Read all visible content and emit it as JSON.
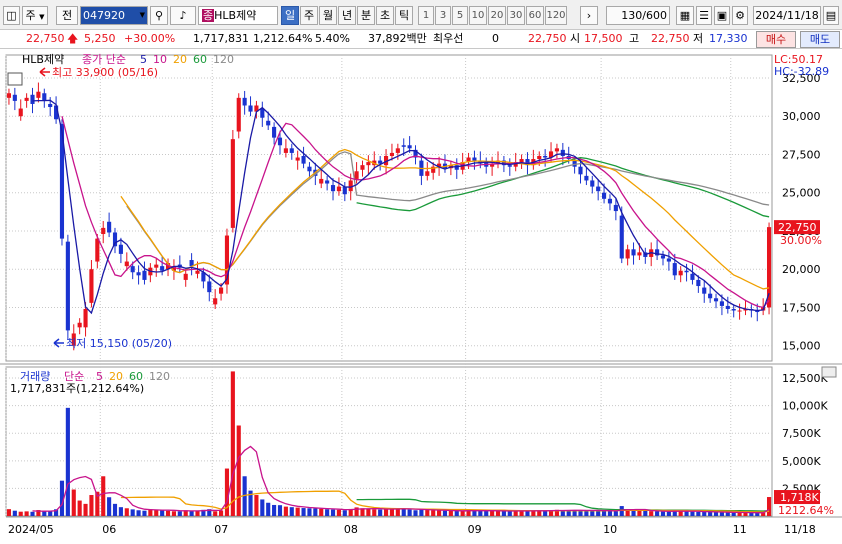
{
  "toolbar": {
    "type_label": "주",
    "prefix_label": "전",
    "code": "047920",
    "stock_name": "HLB제약",
    "stock_badge": "종",
    "period_tabs": [
      "일",
      "주",
      "월",
      "년",
      "분",
      "초",
      "틱"
    ],
    "number_tabs": [
      "1",
      "3",
      "5",
      "10",
      "20",
      "30",
      "60",
      "120"
    ],
    "count": "130",
    "count_total": "/600",
    "date": "2024/11/18"
  },
  "info": {
    "price": "22,750",
    "change": "5,250",
    "change_pct": "+30.00%",
    "volume": "1,717,831",
    "volume_ratio": "1,212.64%",
    "turnover_pct": "5.40%",
    "amount": "37,892백만",
    "priority_label": "최우선",
    "priority_value": "0",
    "current": "22,750",
    "open_label": "시",
    "open": "17,500",
    "high_label": "고",
    "high": "22,750",
    "low_label": "저",
    "low": "17,330",
    "buy_label": "매수",
    "sell_label": "매도"
  },
  "price_panel": {
    "name": "HLB제약",
    "ma_label": "종가 단순",
    "ma_periods": [
      "5",
      "10",
      "20",
      "60",
      "120"
    ],
    "lc": "LC:50.17",
    "hc": "HC:-32.89",
    "high_note": "최고 33,900 (05/16)",
    "low_note": "최저 15,150 (05/20)",
    "last_price_tag": "22,750",
    "last_pct_tag": "30.00%"
  },
  "volume_panel": {
    "title": "거래량",
    "ma_label": "단순",
    "ma_periods": [
      "5",
      "20",
      "60",
      "120"
    ],
    "summary": "1,717,831주(1,212.64%)",
    "last_tag": "1,718K",
    "last_pct_tag": "1212.64%"
  },
  "colors": {
    "up": "#e8141e",
    "down": "#1a33d0",
    "ma5": "#1a1aa6",
    "ma10": "#c8148c",
    "ma20": "#f0a000",
    "ma60": "#1a9a3a",
    "ma120": "#8a8a8a"
  },
  "chart_data": {
    "type": "candlestick",
    "ylim": [
      14000,
      34000
    ],
    "y_ticks": [
      15000,
      17500,
      20000,
      22500,
      25000,
      27500,
      30000,
      32500
    ],
    "volume_ylim": [
      0,
      13500000
    ],
    "volume_ticks": [
      2500000,
      5000000,
      7500000,
      10000000,
      12500000
    ],
    "volume_tick_labels": [
      "2,500K",
      "5,000K",
      "7,500K",
      "10,000K",
      "12,500K"
    ],
    "month_labels": [
      "2024/05",
      "06",
      "07",
      "08",
      "09",
      "10",
      "11",
      "11/18"
    ],
    "month_starts": [
      0,
      16,
      35,
      57,
      78,
      101,
      123
    ],
    "highest": {
      "value": 33900,
      "date": "05/16"
    },
    "lowest": {
      "value": 15150,
      "date": "05/20"
    },
    "close": [
      31500,
      31000,
      30500,
      31200,
      30800,
      31600,
      31000,
      30600,
      29800,
      22000,
      16000,
      15800,
      16500,
      17400,
      20000,
      22000,
      22700,
      22400,
      21500,
      21000,
      20500,
      19800,
      19600,
      19300,
      20100,
      20300,
      19900,
      20400,
      20200,
      20100,
      19700,
      20200,
      19900,
      19200,
      18500,
      18100,
      18800,
      22200,
      28500,
      31200,
      30700,
      30300,
      30700,
      29900,
      29400,
      28600,
      28100,
      27900,
      27600,
      27300,
      26900,
      26400,
      26100,
      25900,
      25600,
      25100,
      25400,
      24900,
      25800,
      26400,
      26800,
      27000,
      27100,
      26900,
      27400,
      27600,
      27900,
      28000,
      27900,
      27300,
      26100,
      26400,
      26700,
      26900,
      26600,
      26800,
      26500,
      27000,
      27300,
      27100,
      26900,
      26700,
      26900,
      27100,
      26800,
      26700,
      27000,
      27200,
      26800,
      27200,
      27400,
      27300,
      27700,
      27900,
      27400,
      27200,
      26700,
      26200,
      25800,
      25400,
      25100,
      24600,
      24300,
      23800,
      20700,
      21300,
      20900,
      21100,
      20800,
      21300,
      20900,
      20700,
      20500,
      19600,
      19900,
      19800,
      19300,
      18900,
      18400,
      18100,
      17900,
      17600,
      17400,
      17300,
      17300,
      17400,
      17300,
      17200,
      17500,
      22750
    ],
    "open_offset": [
      -300,
      400,
      -500,
      -200,
      600,
      -400,
      500,
      200,
      900,
      7500,
      5800,
      -800,
      -300,
      -1200,
      -2200,
      -1500,
      -400,
      700,
      900,
      600,
      -300,
      400,
      200,
      600,
      -500,
      -200,
      300,
      -400,
      -300,
      200,
      -400,
      400,
      -200,
      600,
      700,
      -400,
      -400,
      -3200,
      -5800,
      -2200,
      500,
      400,
      -400,
      600,
      300,
      700,
      500,
      -300,
      300,
      -200,
      500,
      300,
      400,
      -300,
      200,
      400,
      -300,
      500,
      -700,
      -500,
      -300,
      -200,
      -300,
      200,
      -600,
      -200,
      -300,
      100,
      200,
      500,
      1000,
      -300,
      -400,
      -200,
      300,
      -200,
      300,
      -500,
      -300,
      200,
      200,
      300,
      -200,
      -200,
      300,
      100,
      -300,
      -200,
      400,
      -400,
      -200,
      100,
      -400,
      -200,
      400,
      200,
      400,
      500,
      300,
      400,
      300,
      400,
      300,
      400,
      2800,
      -600,
      400,
      -200,
      300,
      -500,
      400,
      200,
      200,
      800,
      -300,
      100,
      400,
      400,
      400,
      300,
      200,
      300,
      200,
      100,
      0,
      -100,
      100,
      100,
      -200,
      -5250
    ],
    "volume_k": [
      620,
      480,
      390,
      420,
      380,
      540,
      460,
      420,
      610,
      3200,
      9800,
      2400,
      1400,
      1100,
      1900,
      2200,
      3600,
      1700,
      1100,
      800,
      700,
      600,
      520,
      480,
      610,
      560,
      500,
      470,
      430,
      420,
      520,
      470,
      450,
      560,
      620,
      430,
      500,
      4300,
      13100,
      8200,
      3600,
      2300,
      1900,
      1500,
      1200,
      1000,
      980,
      850,
      800,
      760,
      720,
      700,
      680,
      650,
      610,
      580,
      560,
      520,
      640,
      780,
      700,
      640,
      600,
      580,
      620,
      680,
      700,
      640,
      580,
      520,
      600,
      540,
      520,
      500,
      480,
      460,
      450,
      470,
      520,
      500,
      480,
      450,
      460,
      480,
      440,
      430,
      460,
      480,
      450,
      500,
      470,
      460,
      520,
      560,
      500,
      480,
      500,
      540,
      520,
      500,
      480,
      460,
      450,
      440,
      900,
      600,
      520,
      480,
      460,
      440,
      420,
      400,
      390,
      520,
      440,
      420,
      400,
      380,
      370,
      360,
      350,
      340,
      320,
      310,
      300,
      300,
      290,
      280,
      300,
      1718
    ]
  }
}
